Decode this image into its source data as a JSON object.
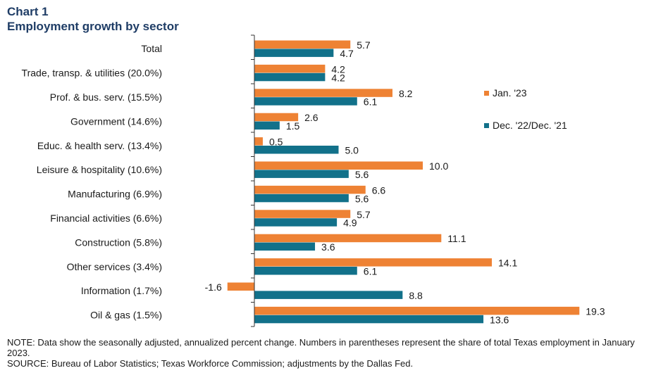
{
  "chart_label": "Chart 1",
  "chart_data": {
    "type": "bar",
    "orientation": "horizontal",
    "title": "Employment growth by sector",
    "categories": [
      "Total",
      "Trade, transp. & utilities (20.0%)",
      "Prof. & bus. serv. (15.5%)",
      "Government (14.6%)",
      "Educ. & health serv. (13.4%)",
      "Leisure & hospitality (10.6%)",
      "Manufacturing (6.9%)",
      "Financial activities (6.6%)",
      "Construction (5.8%)",
      "Other services (3.4%)",
      "Information (1.7%)",
      "Oil & gas (1.5%)"
    ],
    "series": [
      {
        "name": "Jan. '23",
        "color": "#ee8234",
        "values": [
          5.7,
          4.2,
          8.2,
          2.6,
          0.5,
          10.0,
          6.6,
          5.7,
          11.1,
          14.1,
          -1.6,
          19.3
        ],
        "labels": [
          "5.7",
          "4.2",
          "8.2",
          "2.6",
          "0.5",
          "10.0",
          "6.6",
          "5.7",
          "11.1",
          "14.1",
          "-1.6",
          "19.3"
        ]
      },
      {
        "name": "Dec. '22/Dec. '21",
        "color": "#12718a",
        "values": [
          4.7,
          4.2,
          6.1,
          1.5,
          5.0,
          5.6,
          5.6,
          4.9,
          3.6,
          6.1,
          8.8,
          13.6
        ],
        "labels": [
          "4.7",
          "4.2",
          "6.1",
          "1.5",
          "5.0",
          "5.6",
          "5.6",
          "4.9",
          "3.6",
          "6.1",
          "8.8",
          "13.6"
        ]
      }
    ],
    "xlim": [
      -1.6,
      19.3
    ],
    "grid": false,
    "legend_position": "right"
  },
  "notes": {
    "note": "NOTE: Data show the seasonally adjusted, annualized percent change. Numbers in parentheses represent the share of total Texas employment in January 2023.",
    "source": "SOURCE: Bureau of Labor Statistics; Texas Workforce Commission; adjustments by the Dallas Fed."
  }
}
